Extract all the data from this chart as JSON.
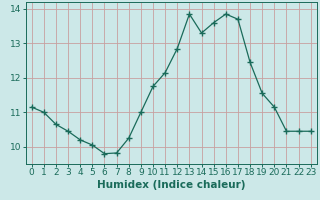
{
  "x": [
    0,
    1,
    2,
    3,
    4,
    5,
    6,
    7,
    8,
    9,
    10,
    11,
    12,
    13,
    14,
    15,
    16,
    17,
    18,
    19,
    20,
    21,
    22,
    23
  ],
  "y": [
    11.15,
    11.0,
    10.65,
    10.45,
    10.2,
    10.05,
    9.8,
    9.82,
    10.25,
    11.0,
    11.75,
    12.15,
    12.85,
    13.85,
    13.3,
    13.6,
    13.85,
    13.7,
    12.45,
    11.55,
    11.15,
    10.45,
    10.45,
    10.45
  ],
  "line_color": "#1a6b5a",
  "marker": "+",
  "marker_size": 4,
  "bg_color": "#cce8e8",
  "grid_color": "#c8a0a0",
  "xlabel": "Humidex (Indice chaleur)",
  "ylim": [
    9.5,
    14.2
  ],
  "xlim": [
    -0.5,
    23.5
  ],
  "yticks": [
    10,
    11,
    12,
    13,
    14
  ],
  "xticks": [
    0,
    1,
    2,
    3,
    4,
    5,
    6,
    7,
    8,
    9,
    10,
    11,
    12,
    13,
    14,
    15,
    16,
    17,
    18,
    19,
    20,
    21,
    22,
    23
  ],
  "tick_label_fontsize": 6.5,
  "xlabel_fontsize": 7.5
}
